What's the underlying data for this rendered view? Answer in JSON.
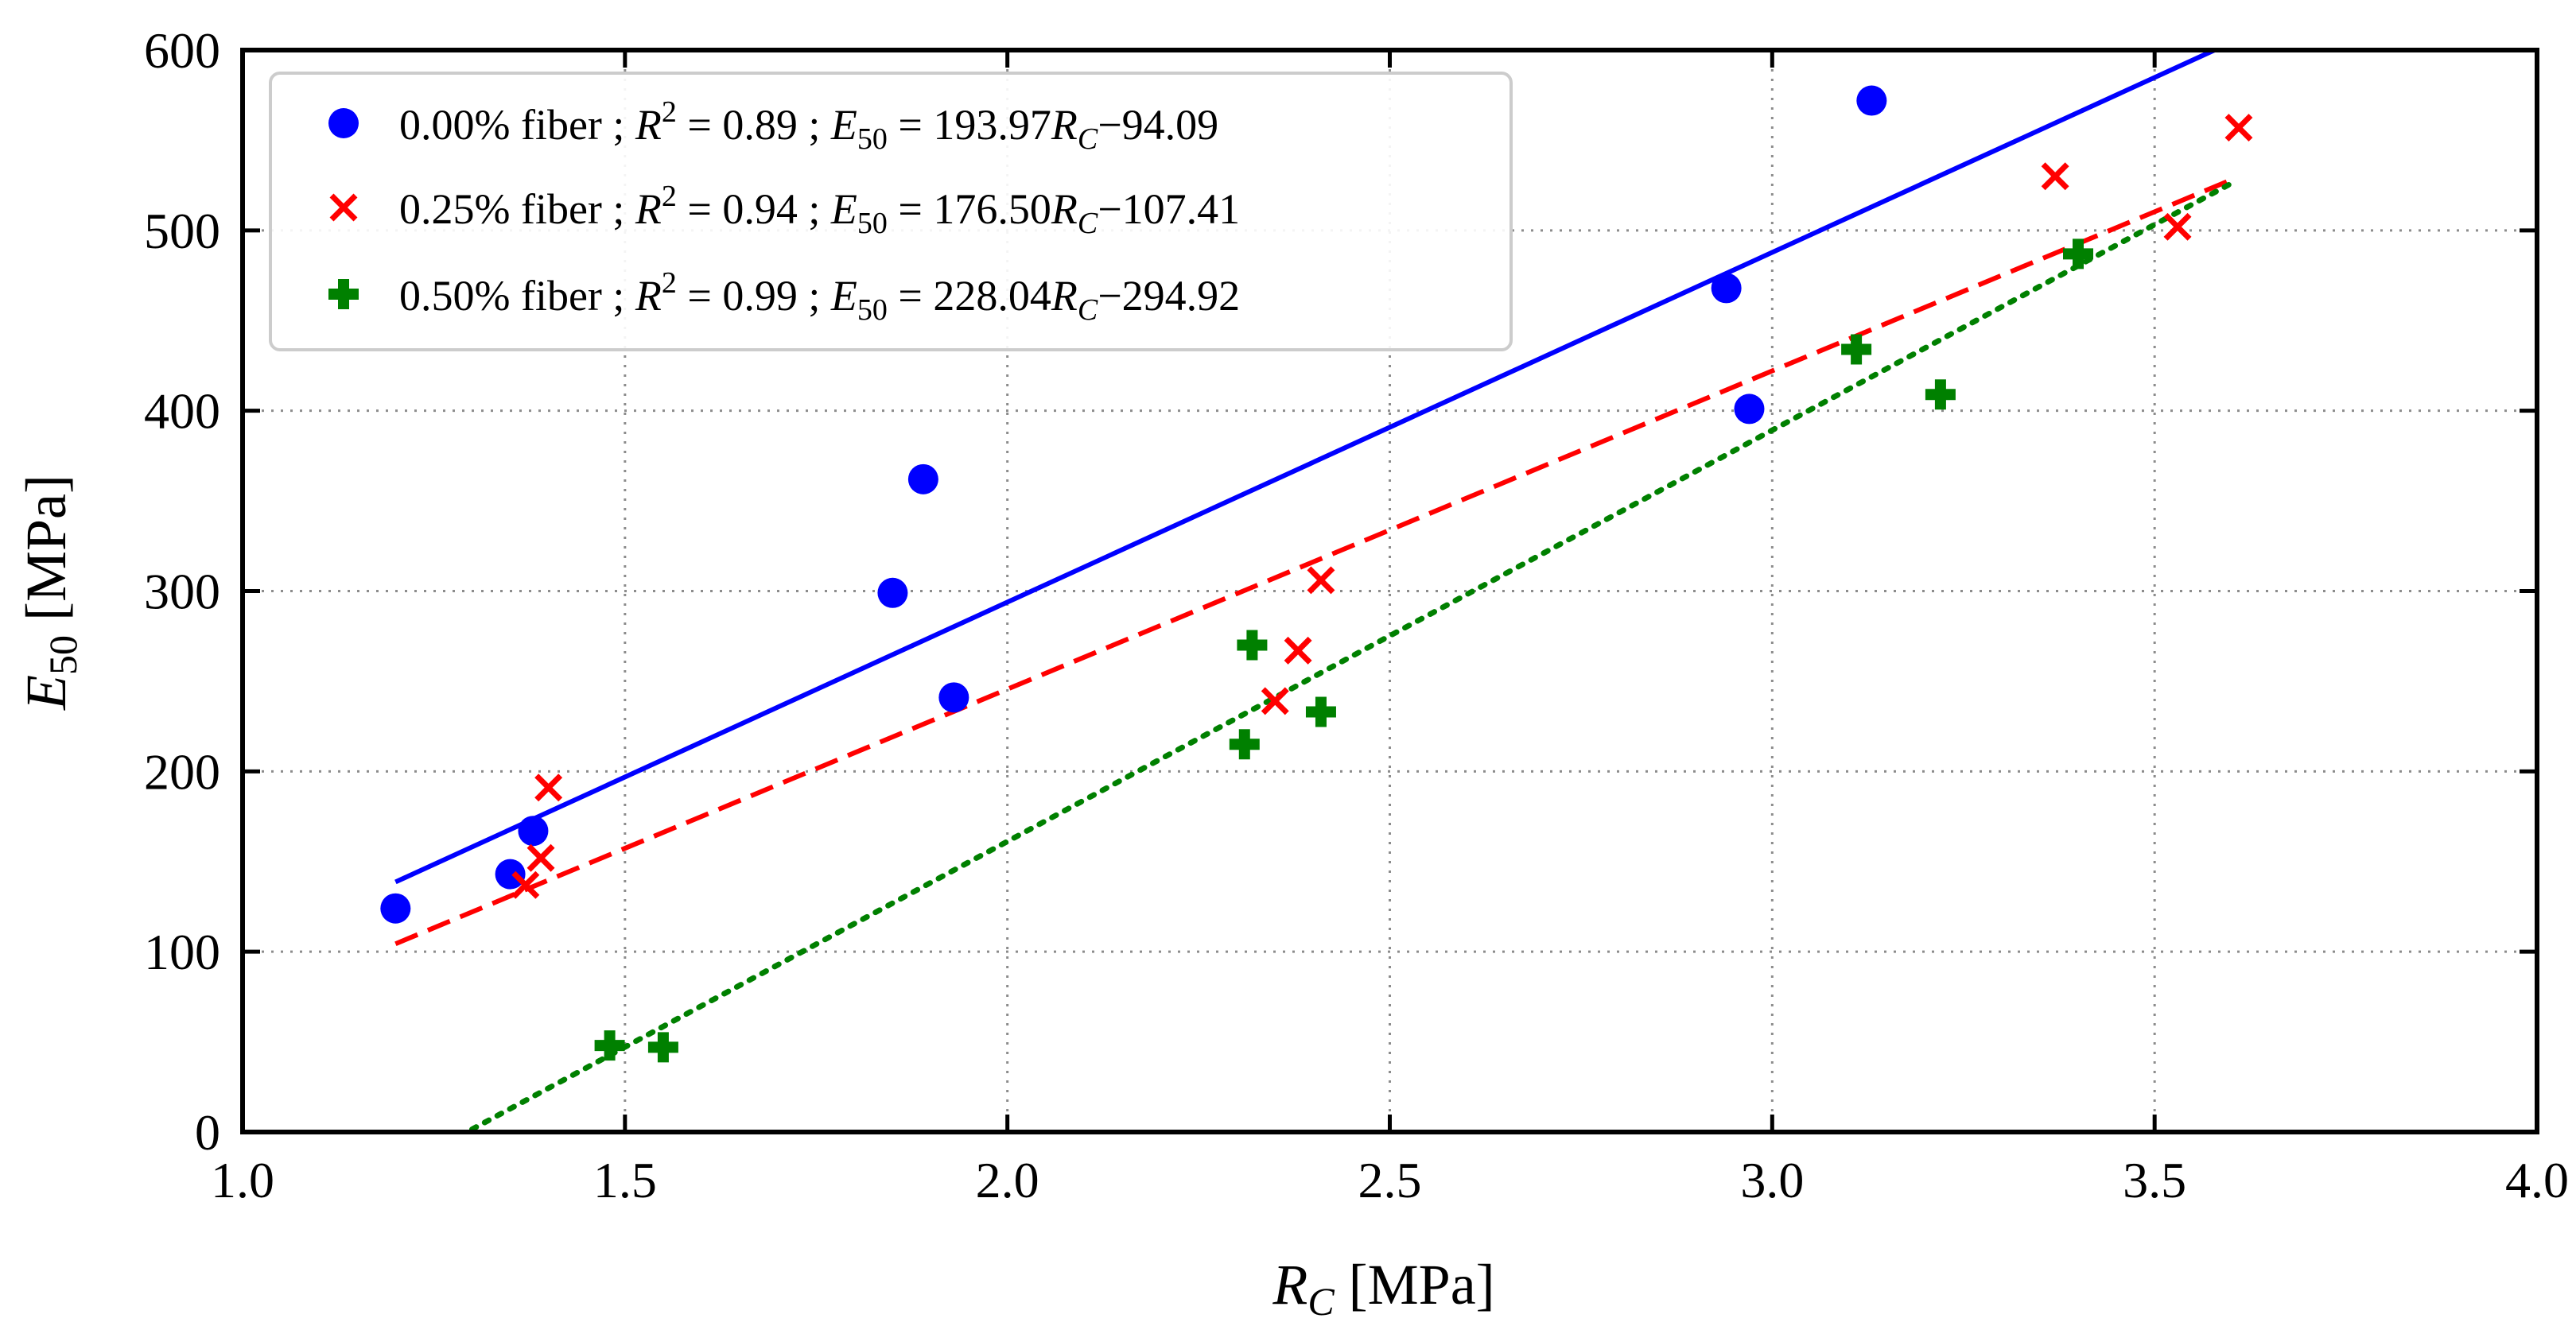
{
  "chart_data": {
    "type": "scatter",
    "title": "",
    "xlabel": {
      "sym": "R",
      "sub": "C",
      "unit": " [MPa]"
    },
    "ylabel": {
      "sym": "E",
      "sub": "50",
      "unit": " [MPa]"
    },
    "xlim": [
      1.0,
      4.0
    ],
    "ylim": [
      0,
      600
    ],
    "x_ticks": [
      1.0,
      1.5,
      2.0,
      2.5,
      3.0,
      3.5,
      4.0
    ],
    "x_tick_labels": [
      "1.0",
      "1.5",
      "2.0",
      "2.5",
      "3.0",
      "3.5",
      "4.0"
    ],
    "y_ticks": [
      0,
      100,
      200,
      300,
      400,
      500,
      600
    ],
    "y_tick_labels": [
      "0",
      "100",
      "200",
      "300",
      "400",
      "500",
      "600"
    ],
    "grid": true,
    "legend_position": "top-left",
    "series": [
      {
        "name": "0.00% fiber",
        "color": "#0000ff",
        "marker": "circle",
        "line_style": "solid",
        "label_prefix": "0.00% fiber ; ",
        "r2": "0.89",
        "slope": "193.97",
        "intercept_text": "94.09",
        "fit": {
          "slope": 193.97,
          "intercept": -94.09,
          "x_range": [
            1.2,
            3.6
          ]
        },
        "x": [
          1.2,
          1.35,
          1.38,
          1.85,
          1.89,
          1.93,
          2.94,
          2.97,
          3.13
        ],
        "y": [
          124,
          143,
          167,
          299,
          362,
          241,
          468,
          401,
          572
        ]
      },
      {
        "name": "0.25% fiber",
        "color": "#ff0000",
        "marker": "x",
        "line_style": "dashed",
        "label_prefix": "0.25% fiber ; ",
        "r2": "0.94",
        "slope": "176.50",
        "intercept_text": "107.41",
        "fit": {
          "slope": 176.5,
          "intercept": -107.41,
          "x_range": [
            1.2,
            3.6
          ]
        },
        "x": [
          1.37,
          1.39,
          1.4,
          2.35,
          2.38,
          2.41,
          3.37,
          3.53,
          3.61
        ],
        "y": [
          137,
          152,
          191,
          239,
          267,
          306,
          530,
          502,
          557
        ]
      },
      {
        "name": "0.50% fiber",
        "color": "#008000",
        "marker": "plus",
        "line_style": "dotted",
        "label_prefix": "0.50% fiber ; ",
        "r2": "0.99",
        "slope": "228.04",
        "intercept_text": "294.92",
        "fit": {
          "slope": 228.04,
          "intercept": -294.92,
          "x_range": [
            1.3,
            3.6
          ]
        },
        "x": [
          1.48,
          1.55,
          2.31,
          2.32,
          2.41,
          3.11,
          3.22,
          3.4
        ],
        "y": [
          48,
          47,
          215,
          270,
          233,
          434,
          409,
          487
        ]
      }
    ]
  }
}
